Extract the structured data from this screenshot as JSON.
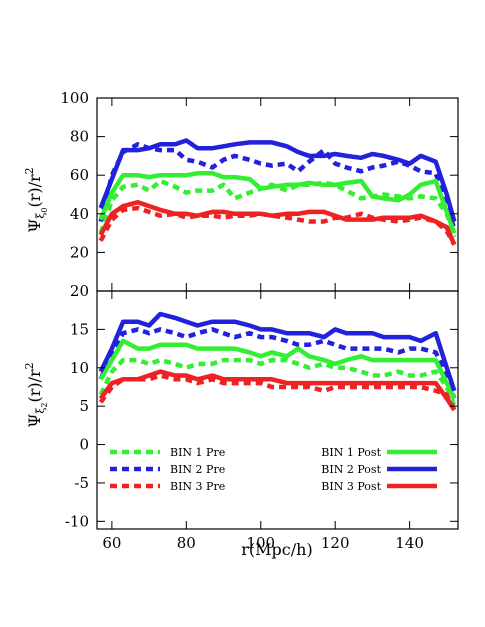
{
  "chart_data": [
    {
      "type": "line",
      "ylabel": "Ψξ0(r)/r²",
      "ylabel_parts": {
        "main": "Ψ",
        "sub": "ξ",
        "subsub": "0",
        "rest": "(r)/r",
        "sup": "2"
      },
      "xlim": [
        56,
        153
      ],
      "ylim": [
        0,
        100
      ],
      "yticks": [
        "20",
        "40",
        "60",
        "80",
        "100"
      ],
      "ytick_values": [
        20,
        40,
        60,
        80,
        100
      ],
      "x": [
        57,
        60,
        63,
        67,
        70,
        73,
        77,
        80,
        83,
        87,
        90,
        93,
        97,
        100,
        103,
        107,
        110,
        113,
        117,
        120,
        123,
        127,
        130,
        133,
        137,
        140,
        143,
        147,
        150,
        152
      ],
      "series": [
        {
          "name": "BIN 1 Pre",
          "color": "#33ee33",
          "dashed": true,
          "values": [
            30,
            47,
            54,
            55,
            52,
            57,
            54,
            51,
            52,
            52,
            55,
            48,
            51,
            53,
            55,
            52,
            55,
            55,
            56,
            55,
            52,
            48,
            49,
            50,
            49,
            48,
            49,
            48,
            40,
            28
          ]
        },
        {
          "name": "BIN 2 Pre",
          "color": "#2222dd",
          "dashed": true,
          "values": [
            36,
            60,
            72,
            76,
            74,
            73,
            73,
            68,
            67,
            64,
            68,
            70,
            68,
            66,
            65,
            66,
            62,
            67,
            73,
            66,
            64,
            62,
            64,
            65,
            67,
            65,
            62,
            61,
            45,
            32
          ]
        },
        {
          "name": "BIN 3 Pre",
          "color": "#ee2222",
          "dashed": true,
          "values": [
            26,
            37,
            42,
            43,
            41,
            39,
            40,
            38,
            39,
            39,
            38,
            39,
            39,
            40,
            39,
            38,
            37,
            36,
            36,
            38,
            38,
            40,
            38,
            37,
            36,
            37,
            38,
            36,
            31,
            24
          ]
        },
        {
          "name": "BIN 1 Post",
          "color": "#33ee33",
          "dashed": false,
          "values": [
            37,
            51,
            60,
            60,
            59,
            60,
            60,
            60,
            61,
            61,
            59,
            59,
            58,
            53,
            54,
            55,
            55,
            56,
            55,
            55,
            56,
            57,
            49,
            48,
            47,
            50,
            55,
            57,
            41,
            30
          ]
        },
        {
          "name": "BIN 2 Post",
          "color": "#2222dd",
          "dashed": false,
          "values": [
            43,
            58,
            73,
            73,
            74,
            76,
            76,
            78,
            74,
            74,
            75,
            76,
            77,
            77,
            77,
            75,
            72,
            70,
            70,
            71,
            70,
            69,
            71,
            70,
            68,
            66,
            70,
            67,
            50,
            36
          ]
        },
        {
          "name": "BIN 3 Post",
          "color": "#ee2222",
          "dashed": false,
          "values": [
            29,
            40,
            44,
            46,
            44,
            42,
            40,
            40,
            39,
            41,
            41,
            40,
            40,
            40,
            39,
            40,
            40,
            41,
            41,
            39,
            37,
            37,
            37,
            38,
            38,
            38,
            39,
            36,
            33,
            24
          ]
        }
      ]
    },
    {
      "type": "line",
      "ylabel": "Ψξ2(r)/r²",
      "ylabel_parts": {
        "main": "Ψ",
        "sub": "ξ",
        "subsub": "2",
        "rest": "(r)/r",
        "sup": "2"
      },
      "xlabel": "r(Mpc/h)",
      "xlim": [
        56,
        153
      ],
      "ylim": [
        -11,
        20
      ],
      "xticks": [
        "60",
        "80",
        "100",
        "120",
        "140"
      ],
      "xtick_values": [
        60,
        80,
        100,
        120,
        140
      ],
      "yticks": [
        "-10",
        "-5",
        "0",
        "5",
        "10",
        "15",
        "20"
      ],
      "ytick_values": [
        -10,
        -5,
        0,
        5,
        10,
        15,
        20
      ],
      "x": [
        57,
        60,
        63,
        67,
        70,
        73,
        77,
        80,
        83,
        87,
        90,
        93,
        97,
        100,
        103,
        107,
        110,
        113,
        117,
        120,
        123,
        127,
        130,
        133,
        137,
        140,
        143,
        147,
        150,
        152
      ],
      "series": [
        {
          "name": "BIN 1 Pre",
          "color": "#33ee33",
          "dashed": true,
          "values": [
            6.5,
            9.5,
            11,
            11,
            10.5,
            11,
            10.5,
            10,
            10.5,
            10.5,
            11,
            11,
            11,
            10.5,
            11,
            11,
            10.5,
            10,
            10.5,
            10,
            10,
            9.5,
            9,
            9,
            9.5,
            9,
            9,
            9.5,
            7.5,
            5
          ]
        },
        {
          "name": "BIN 2 Pre",
          "color": "#2222dd",
          "dashed": true,
          "values": [
            8.5,
            12,
            14.5,
            15,
            14.5,
            15,
            14.5,
            14,
            14.5,
            15,
            14.5,
            14,
            14.5,
            14,
            14,
            13.5,
            13,
            13,
            13.5,
            13,
            12.5,
            12.5,
            12.5,
            12.5,
            12,
            12.5,
            12.5,
            12,
            9,
            6
          ]
        },
        {
          "name": "BIN 3 Pre",
          "color": "#ee2222",
          "dashed": true,
          "values": [
            5.5,
            7.5,
            8.5,
            8.5,
            8.5,
            9,
            8.5,
            8.5,
            8,
            8.5,
            8,
            8,
            8,
            8,
            7.5,
            7.5,
            7.5,
            7.5,
            7,
            7.5,
            7.5,
            7.5,
            7.5,
            7.5,
            7.5,
            7.5,
            7.5,
            7,
            6.5,
            4.5
          ]
        },
        {
          "name": "BIN 1 Post",
          "color": "#33ee33",
          "dashed": false,
          "values": [
            8.5,
            11,
            13.5,
            12.5,
            12.5,
            13,
            13,
            13,
            12.5,
            12.5,
            12.5,
            12.5,
            12,
            11.5,
            12,
            11.5,
            12.5,
            11.5,
            11,
            10.5,
            11,
            11.5,
            11,
            11,
            11,
            11,
            11,
            11,
            8,
            6
          ]
        },
        {
          "name": "BIN 2 Post",
          "color": "#2222dd",
          "dashed": false,
          "values": [
            9.5,
            12.5,
            16,
            16,
            15.5,
            17,
            16.5,
            16,
            15.5,
            16,
            16,
            16,
            15.5,
            15,
            15,
            14.5,
            14.5,
            14.5,
            14,
            15,
            14.5,
            14.5,
            14.5,
            14,
            14,
            14,
            13.5,
            14.5,
            10,
            7
          ]
        },
        {
          "name": "BIN 3 Post",
          "color": "#ee2222",
          "dashed": false,
          "values": [
            6,
            8,
            8.5,
            8.5,
            9,
            9.5,
            9,
            9,
            8.5,
            9,
            8.5,
            8.5,
            8.5,
            8.5,
            8.5,
            8,
            8,
            8,
            8,
            8,
            8,
            8,
            8,
            8,
            8,
            8,
            8,
            8,
            6,
            4.5
          ]
        }
      ]
    }
  ]
}
